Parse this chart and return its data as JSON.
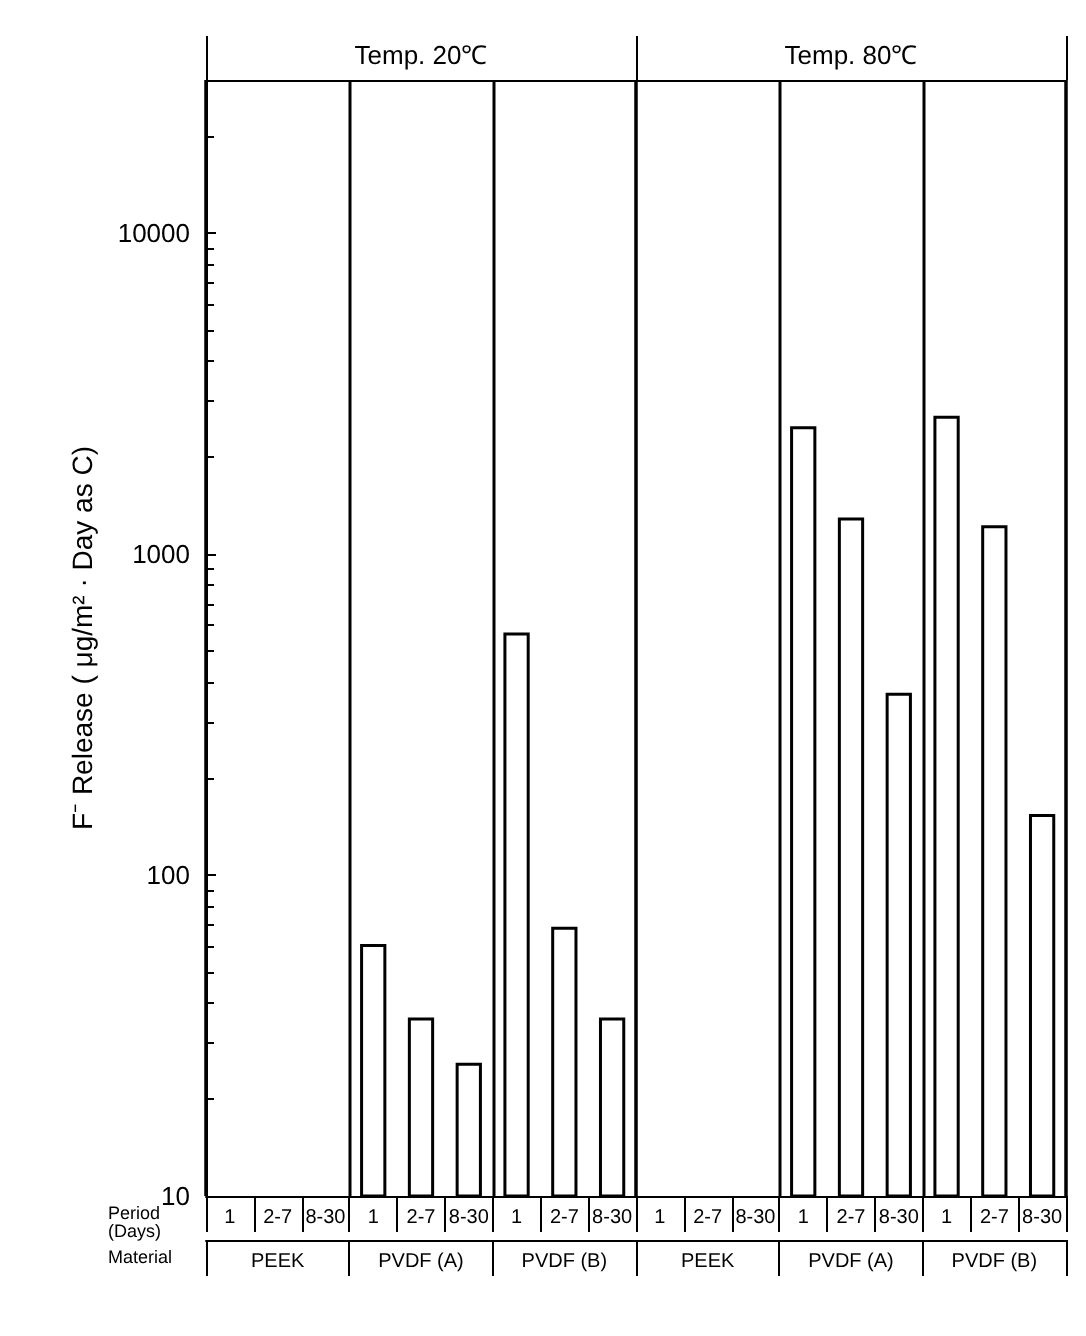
{
  "chart_data": {
    "type": "bar",
    "ylabel": "F⁻ Release ( μg/m² · Day as C)",
    "categories": [
      "1",
      "2-7",
      "8-30",
      "1",
      "2-7",
      "8-30",
      "1",
      "2-7",
      "8-30",
      "1",
      "2-7",
      "8-30",
      "1",
      "2-7",
      "8-30",
      "1",
      "2-7",
      "8-30"
    ],
    "values": [
      null,
      null,
      null,
      61,
      36,
      26,
      570,
      69,
      36,
      null,
      null,
      null,
      2500,
      1300,
      370,
      2700,
      1230,
      155
    ],
    "color": "#ffffff",
    "log": true,
    "ylim": [
      10,
      30000
    ],
    "yticks": [
      10,
      100,
      1000,
      10000
    ],
    "grid": false,
    "annotations": [
      "Temp. 20℃",
      "Temp. 80℃",
      "Period (Days)",
      "Material",
      "PEEK",
      "PVDF (A)",
      "PVDF (B)",
      "PEEK",
      "PVDF (A)",
      "PVDF (B)"
    ]
  }
}
